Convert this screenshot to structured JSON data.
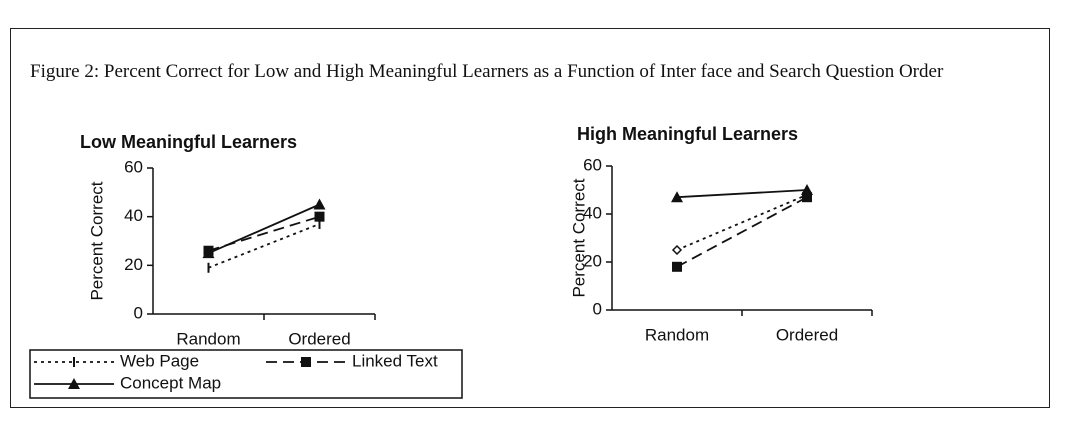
{
  "caption": "Figure 2: Percent Correct for Low and High Meaningful Learners as a Function of Inter face and Search Question Order",
  "chart_data": [
    {
      "type": "line",
      "title": "Low Meaningful Learners",
      "y_label": "Percent Correct",
      "categories": [
        "Random",
        "Ordered"
      ],
      "ylim": [
        0,
        60
      ],
      "yticks": [
        0,
        20,
        40,
        60
      ],
      "legend": "bottom",
      "series": [
        {
          "name": "Web Page",
          "color": "#111111",
          "style": "dotted",
          "marker": "tick",
          "values": [
            19,
            37
          ]
        },
        {
          "name": "Linked Text",
          "color": "#111111",
          "style": "dashed",
          "marker": "square",
          "values": [
            26,
            40
          ]
        },
        {
          "name": "Concept Map",
          "color": "#111111",
          "style": "solid",
          "marker": "triangle",
          "values": [
            25,
            45
          ]
        }
      ]
    },
    {
      "type": "line",
      "title": "High Meaningful Learners",
      "y_label": "Percent Correct",
      "categories": [
        "Random",
        "Ordered"
      ],
      "ylim": [
        0,
        60
      ],
      "yticks": [
        0,
        20,
        40,
        60
      ],
      "series": [
        {
          "color": "#111111",
          "style": "dotted",
          "marker": "diamond",
          "values": [
            25,
            48
          ]
        },
        {
          "color": "#111111",
          "style": "dashed",
          "marker": "square",
          "values": [
            18,
            47
          ]
        },
        {
          "color": "#111111",
          "style": "solid",
          "marker": "triangle",
          "values": [
            47,
            50
          ]
        }
      ]
    }
  ]
}
